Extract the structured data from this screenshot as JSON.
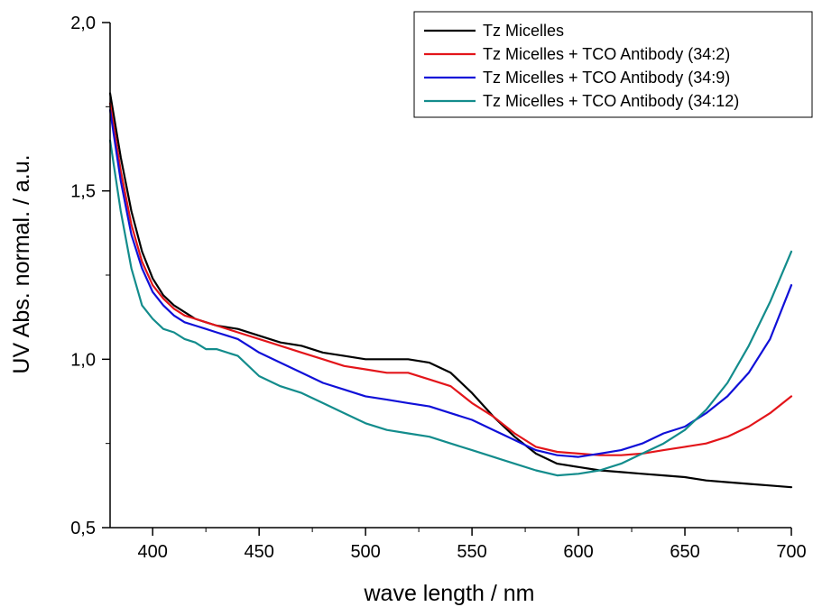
{
  "chart_data": {
    "type": "line",
    "xlabel": "wave length / nm",
    "ylabel": "UV Abs. normal. / a.u.",
    "xlim": [
      380,
      700
    ],
    "ylim": [
      0.5,
      2.0
    ],
    "x_ticks": [
      400,
      450,
      500,
      550,
      600,
      650,
      700
    ],
    "x_tick_labels": [
      "400",
      "450",
      "500",
      "550",
      "600",
      "650",
      "700"
    ],
    "y_ticks": [
      0.5,
      1.0,
      1.5,
      2.0
    ],
    "y_tick_labels": [
      "0,5",
      "1,0",
      "1,5",
      "2,0"
    ],
    "grid": false,
    "legend_position": "top-right",
    "series": [
      {
        "name": "Tz Micelles",
        "color": "#000000",
        "points": [
          [
            380,
            1.79
          ],
          [
            385,
            1.6
          ],
          [
            390,
            1.44
          ],
          [
            395,
            1.32
          ],
          [
            400,
            1.24
          ],
          [
            405,
            1.19
          ],
          [
            410,
            1.16
          ],
          [
            415,
            1.14
          ],
          [
            420,
            1.12
          ],
          [
            425,
            1.11
          ],
          [
            430,
            1.1
          ],
          [
            440,
            1.09
          ],
          [
            450,
            1.07
          ],
          [
            460,
            1.05
          ],
          [
            470,
            1.04
          ],
          [
            480,
            1.02
          ],
          [
            490,
            1.01
          ],
          [
            500,
            1.0
          ],
          [
            510,
            1.0
          ],
          [
            520,
            1.0
          ],
          [
            530,
            0.99
          ],
          [
            540,
            0.96
          ],
          [
            550,
            0.9
          ],
          [
            560,
            0.83
          ],
          [
            570,
            0.77
          ],
          [
            580,
            0.72
          ],
          [
            590,
            0.69
          ],
          [
            600,
            0.68
          ],
          [
            610,
            0.67
          ],
          [
            620,
            0.665
          ],
          [
            630,
            0.66
          ],
          [
            640,
            0.655
          ],
          [
            650,
            0.65
          ],
          [
            660,
            0.64
          ],
          [
            670,
            0.635
          ],
          [
            680,
            0.63
          ],
          [
            690,
            0.625
          ],
          [
            700,
            0.62
          ]
        ]
      },
      {
        "name": "Tz Micelles + TCO Antibody (34:2)",
        "color": "#e3151a",
        "points": [
          [
            380,
            1.76
          ],
          [
            385,
            1.56
          ],
          [
            390,
            1.4
          ],
          [
            395,
            1.29
          ],
          [
            400,
            1.22
          ],
          [
            405,
            1.18
          ],
          [
            410,
            1.15
          ],
          [
            415,
            1.13
          ],
          [
            420,
            1.12
          ],
          [
            425,
            1.11
          ],
          [
            430,
            1.1
          ],
          [
            440,
            1.08
          ],
          [
            450,
            1.06
          ],
          [
            460,
            1.04
          ],
          [
            470,
            1.02
          ],
          [
            480,
            1.0
          ],
          [
            490,
            0.98
          ],
          [
            500,
            0.97
          ],
          [
            510,
            0.96
          ],
          [
            520,
            0.96
          ],
          [
            530,
            0.94
          ],
          [
            540,
            0.92
          ],
          [
            550,
            0.87
          ],
          [
            560,
            0.83
          ],
          [
            570,
            0.78
          ],
          [
            580,
            0.74
          ],
          [
            590,
            0.725
          ],
          [
            600,
            0.72
          ],
          [
            610,
            0.715
          ],
          [
            620,
            0.715
          ],
          [
            630,
            0.72
          ],
          [
            640,
            0.73
          ],
          [
            650,
            0.74
          ],
          [
            660,
            0.75
          ],
          [
            670,
            0.77
          ],
          [
            680,
            0.8
          ],
          [
            690,
            0.84
          ],
          [
            700,
            0.89
          ]
        ]
      },
      {
        "name": "Tz Micelles + TCO Antibody (34:9)",
        "color": "#1010d8",
        "points": [
          [
            380,
            1.74
          ],
          [
            385,
            1.53
          ],
          [
            390,
            1.37
          ],
          [
            395,
            1.27
          ],
          [
            400,
            1.2
          ],
          [
            405,
            1.16
          ],
          [
            410,
            1.13
          ],
          [
            415,
            1.11
          ],
          [
            420,
            1.1
          ],
          [
            425,
            1.09
          ],
          [
            430,
            1.08
          ],
          [
            440,
            1.06
          ],
          [
            450,
            1.02
          ],
          [
            460,
            0.99
          ],
          [
            470,
            0.96
          ],
          [
            480,
            0.93
          ],
          [
            490,
            0.91
          ],
          [
            500,
            0.89
          ],
          [
            510,
            0.88
          ],
          [
            520,
            0.87
          ],
          [
            530,
            0.86
          ],
          [
            540,
            0.84
          ],
          [
            550,
            0.82
          ],
          [
            560,
            0.79
          ],
          [
            570,
            0.76
          ],
          [
            580,
            0.73
          ],
          [
            590,
            0.715
          ],
          [
            600,
            0.71
          ],
          [
            610,
            0.72
          ],
          [
            620,
            0.73
          ],
          [
            630,
            0.75
          ],
          [
            640,
            0.78
          ],
          [
            650,
            0.8
          ],
          [
            660,
            0.84
          ],
          [
            670,
            0.89
          ],
          [
            680,
            0.96
          ],
          [
            690,
            1.06
          ],
          [
            700,
            1.22
          ]
        ]
      },
      {
        "name": "Tz Micelles + TCO Antibody (34:12)",
        "color": "#138c8c",
        "points": [
          [
            380,
            1.65
          ],
          [
            385,
            1.44
          ],
          [
            390,
            1.27
          ],
          [
            395,
            1.16
          ],
          [
            400,
            1.12
          ],
          [
            405,
            1.09
          ],
          [
            410,
            1.08
          ],
          [
            415,
            1.06
          ],
          [
            420,
            1.05
          ],
          [
            425,
            1.03
          ],
          [
            430,
            1.03
          ],
          [
            440,
            1.01
          ],
          [
            450,
            0.95
          ],
          [
            460,
            0.92
          ],
          [
            470,
            0.9
          ],
          [
            480,
            0.87
          ],
          [
            490,
            0.84
          ],
          [
            500,
            0.81
          ],
          [
            510,
            0.79
          ],
          [
            520,
            0.78
          ],
          [
            530,
            0.77
          ],
          [
            540,
            0.75
          ],
          [
            550,
            0.73
          ],
          [
            560,
            0.71
          ],
          [
            570,
            0.69
          ],
          [
            580,
            0.67
          ],
          [
            590,
            0.655
          ],
          [
            600,
            0.66
          ],
          [
            610,
            0.67
          ],
          [
            620,
            0.69
          ],
          [
            630,
            0.72
          ],
          [
            640,
            0.75
          ],
          [
            650,
            0.79
          ],
          [
            660,
            0.85
          ],
          [
            670,
            0.93
          ],
          [
            680,
            1.04
          ],
          [
            690,
            1.17
          ],
          [
            700,
            1.32
          ]
        ]
      }
    ]
  }
}
